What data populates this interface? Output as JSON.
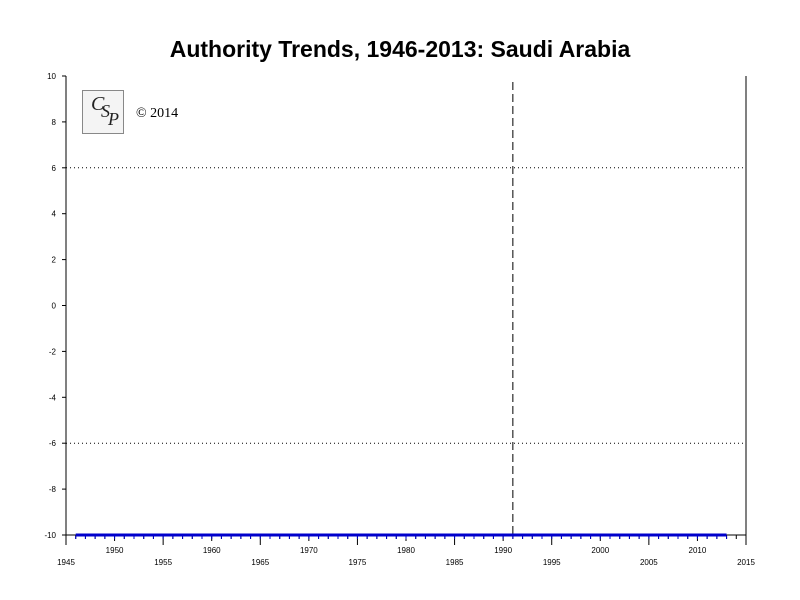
{
  "chart_data": {
    "type": "line",
    "title": "Authority Trends, 1946-2013: Saudi Arabia",
    "xlabel": "",
    "ylabel": "",
    "xlim": [
      1945,
      2015
    ],
    "ylim": [
      -10,
      10
    ],
    "x_major_ticks": [
      1945,
      1955,
      1965,
      1975,
      1985,
      1995,
      2005,
      2015
    ],
    "x_minor_labeled_ticks": [
      1950,
      1960,
      1970,
      1980,
      1990,
      2000,
      2010
    ],
    "y_ticks": [
      10,
      8,
      6,
      4,
      2,
      0,
      -2,
      -4,
      -6,
      -8,
      -10
    ],
    "reference_lines_y": [
      6,
      -6
    ],
    "vertical_marker_x": 1991,
    "series": [
      {
        "color": "#0000cc",
        "x": [
          1946,
          1947,
          1948,
          1949,
          1950,
          1951,
          1952,
          1953,
          1954,
          1955,
          1956,
          1957,
          1958,
          1959,
          1960,
          1961,
          1962,
          1963,
          1964,
          1965,
          1966,
          1967,
          1968,
          1969,
          1970,
          1971,
          1972,
          1973,
          1974,
          1975,
          1976,
          1977,
          1978,
          1979,
          1980,
          1981,
          1982,
          1983,
          1984,
          1985,
          1986,
          1987,
          1988,
          1989,
          1990,
          1991,
          1992,
          1993,
          1994,
          1995,
          1996,
          1997,
          1998,
          1999,
          2000,
          2001,
          2002,
          2003,
          2004,
          2005,
          2006,
          2007,
          2008,
          2009,
          2010,
          2011,
          2012,
          2013
        ],
        "values": [
          -10,
          -10,
          -10,
          -10,
          -10,
          -10,
          -10,
          -10,
          -10,
          -10,
          -10,
          -10,
          -10,
          -10,
          -10,
          -10,
          -10,
          -10,
          -10,
          -10,
          -10,
          -10,
          -10,
          -10,
          -10,
          -10,
          -10,
          -10,
          -10,
          -10,
          -10,
          -10,
          -10,
          -10,
          -10,
          -10,
          -10,
          -10,
          -10,
          -10,
          -10,
          -10,
          -10,
          -10,
          -10,
          -10,
          -10,
          -10,
          -10,
          -10,
          -10,
          -10,
          -10,
          -10,
          -10,
          -10,
          -10,
          -10,
          -10,
          -10,
          -10,
          -10,
          -10,
          -10,
          -10,
          -10,
          -10,
          -10
        ]
      }
    ]
  },
  "logo": {
    "text": "CSP",
    "letters": [
      "C",
      "S",
      "P"
    ]
  },
  "copyright": "© 2014",
  "colors": {
    "series": "#0000cc",
    "axis": "#000000",
    "reference": "#000000"
  }
}
